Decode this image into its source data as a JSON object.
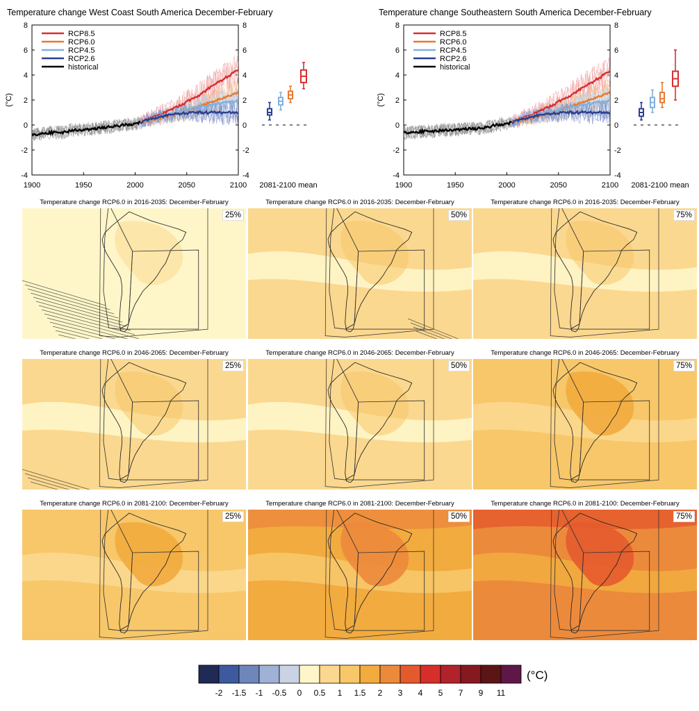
{
  "chart_data": [
    {
      "type": "line",
      "title": "Temperature change West Coast South America December-February",
      "ylabel": "(°C)",
      "xlim": [
        1900,
        2100
      ],
      "ylim": [
        -4,
        8
      ],
      "x_ticks": [
        "1900",
        "1950",
        "2000",
        "2050",
        "2100"
      ],
      "y_ticks": [
        "-4",
        "-2",
        "0",
        "2",
        "4",
        "6",
        "8"
      ],
      "box_label": "2081-2100 mean",
      "legend": [
        "RCP8.5",
        "RCP6.0",
        "RCP4.5",
        "RCP2.6",
        "historical"
      ],
      "series": [
        {
          "name": "historical",
          "color": "#000000",
          "x": [
            1900,
            1910,
            1920,
            1930,
            1940,
            1950,
            1960,
            1970,
            1980,
            1990,
            2000,
            2005
          ],
          "y": [
            -0.8,
            -0.7,
            -0.6,
            -0.6,
            -0.4,
            -0.4,
            -0.3,
            -0.2,
            -0.1,
            0.0,
            0.1,
            0.2
          ]
        },
        {
          "name": "RCP2.6",
          "color": "#2a3f8f",
          "x": [
            2005,
            2020,
            2040,
            2060,
            2080,
            2100
          ],
          "y": [
            0.2,
            0.6,
            0.9,
            1.0,
            1.0,
            1.0
          ]
        },
        {
          "name": "RCP4.5",
          "color": "#7fb0de",
          "x": [
            2005,
            2020,
            2040,
            2060,
            2080,
            2100
          ],
          "y": [
            0.2,
            0.6,
            1.0,
            1.4,
            1.7,
            1.9
          ]
        },
        {
          "name": "RCP6.0",
          "color": "#e8792f",
          "x": [
            2005,
            2020,
            2040,
            2060,
            2080,
            2100
          ],
          "y": [
            0.2,
            0.5,
            0.9,
            1.4,
            2.0,
            2.6
          ]
        },
        {
          "name": "RCP8.5",
          "color": "#d62f2f",
          "x": [
            2005,
            2020,
            2040,
            2060,
            2080,
            2100
          ],
          "y": [
            0.2,
            0.7,
            1.4,
            2.3,
            3.4,
            4.4
          ]
        }
      ],
      "boxes": [
        {
          "name": "RCP2.6",
          "color": "#2a3f8f",
          "min": 0.4,
          "q1": 0.8,
          "median": 1.0,
          "q3": 1.3,
          "max": 1.8
        },
        {
          "name": "RCP4.5",
          "color": "#7fb0de",
          "min": 1.2,
          "q1": 1.6,
          "median": 1.9,
          "q3": 2.2,
          "max": 2.6
        },
        {
          "name": "RCP6.0",
          "color": "#e8792f",
          "min": 1.8,
          "q1": 2.1,
          "median": 2.4,
          "q3": 2.7,
          "max": 3.1
        },
        {
          "name": "RCP8.5",
          "color": "#d62f2f",
          "min": 2.9,
          "q1": 3.4,
          "median": 3.9,
          "q3": 4.4,
          "max": 5.0
        }
      ]
    },
    {
      "type": "line",
      "title": "Temperature change Southeastern South America December-February",
      "ylabel": "(°C)",
      "xlim": [
        1900,
        2100
      ],
      "ylim": [
        -4,
        8
      ],
      "x_ticks": [
        "1900",
        "1950",
        "2000",
        "2050",
        "2100"
      ],
      "y_ticks": [
        "-4",
        "-2",
        "0",
        "2",
        "4",
        "6",
        "8"
      ],
      "box_label": "2081-2100 mean",
      "legend": [
        "RCP8.5",
        "RCP6.0",
        "RCP4.5",
        "RCP2.6",
        "historical"
      ],
      "series": [
        {
          "name": "historical",
          "color": "#000000",
          "x": [
            1900,
            1910,
            1920,
            1930,
            1940,
            1950,
            1960,
            1970,
            1980,
            1990,
            2000,
            2005
          ],
          "y": [
            -0.6,
            -0.6,
            -0.5,
            -0.5,
            -0.4,
            -0.4,
            -0.3,
            -0.3,
            -0.2,
            0.0,
            0.1,
            0.2
          ]
        },
        {
          "name": "RCP2.6",
          "color": "#2a3f8f",
          "x": [
            2005,
            2020,
            2040,
            2060,
            2080,
            2100
          ],
          "y": [
            0.2,
            0.6,
            0.9,
            1.0,
            1.0,
            1.0
          ]
        },
        {
          "name": "RCP4.5",
          "color": "#7fb0de",
          "x": [
            2005,
            2020,
            2040,
            2060,
            2080,
            2100
          ],
          "y": [
            0.2,
            0.6,
            1.0,
            1.4,
            1.7,
            1.9
          ]
        },
        {
          "name": "RCP6.0",
          "color": "#e8792f",
          "x": [
            2005,
            2020,
            2040,
            2060,
            2080,
            2100
          ],
          "y": [
            0.2,
            0.5,
            0.9,
            1.4,
            2.0,
            2.6
          ]
        },
        {
          "name": "RCP8.5",
          "color": "#d62f2f",
          "x": [
            2005,
            2020,
            2040,
            2060,
            2080,
            2100
          ],
          "y": [
            0.2,
            0.7,
            1.4,
            2.3,
            3.3,
            4.3
          ]
        }
      ],
      "boxes": [
        {
          "name": "RCP2.6",
          "color": "#2a3f8f",
          "min": 0.4,
          "q1": 0.7,
          "median": 1.0,
          "q3": 1.3,
          "max": 1.8
        },
        {
          "name": "RCP4.5",
          "color": "#7fb0de",
          "min": 1.0,
          "q1": 1.4,
          "median": 1.8,
          "q3": 2.2,
          "max": 2.8
        },
        {
          "name": "RCP6.0",
          "color": "#e8792f",
          "min": 1.4,
          "q1": 1.8,
          "median": 2.1,
          "q3": 2.6,
          "max": 3.4
        },
        {
          "name": "RCP8.5",
          "color": "#d62f2f",
          "min": 2.0,
          "q1": 3.1,
          "median": 3.7,
          "q3": 4.3,
          "max": 6.0
        }
      ]
    },
    {
      "type": "heatmap",
      "maps": [
        {
          "title": "Temperature change RCP6.0 in 2016-2035: December-February",
          "percentile": "25%",
          "level": 0.5
        },
        {
          "title": "Temperature change RCP6.0 in 2016-2035: December-February",
          "percentile": "50%",
          "level": 1.0
        },
        {
          "title": "Temperature change RCP6.0 in 2016-2035: December-February",
          "percentile": "75%",
          "level": 1.0
        },
        {
          "title": "Temperature change RCP6.0 in 2046-2065: December-February",
          "percentile": "25%",
          "level": 1.0
        },
        {
          "title": "Temperature change RCP6.0 in 2046-2065: December-February",
          "percentile": "50%",
          "level": 1.0
        },
        {
          "title": "Temperature change RCP6.0 in 2046-2065: December-February",
          "percentile": "75%",
          "level": 1.5
        },
        {
          "title": "Temperature change RCP6.0 in 2081-2100: December-February",
          "percentile": "25%",
          "level": 1.5
        },
        {
          "title": "Temperature change RCP6.0 in 2081-2100: December-February",
          "percentile": "50%",
          "level": 2.0
        },
        {
          "title": "Temperature change RCP6.0 in 2081-2100: December-February",
          "percentile": "75%",
          "level": 3.0
        }
      ],
      "colorbar": {
        "unit": "(°C)",
        "colors": [
          "#1f2a55",
          "#3d5a9e",
          "#6f86ba",
          "#9fb1d4",
          "#c9d3e3",
          "#fef6c9",
          "#fbd88f",
          "#f7c76a",
          "#f2ab3e",
          "#ec8a3c",
          "#e55a2d",
          "#d62f2a",
          "#b0232a",
          "#86191f",
          "#5c1515",
          "#5e1848"
        ],
        "labels": [
          "-2",
          "-1.5",
          "-1",
          "-0.5",
          "0",
          "0.5",
          "1",
          "1.5",
          "2",
          "3",
          "4",
          "5",
          "7",
          "9",
          "11"
        ]
      }
    }
  ]
}
